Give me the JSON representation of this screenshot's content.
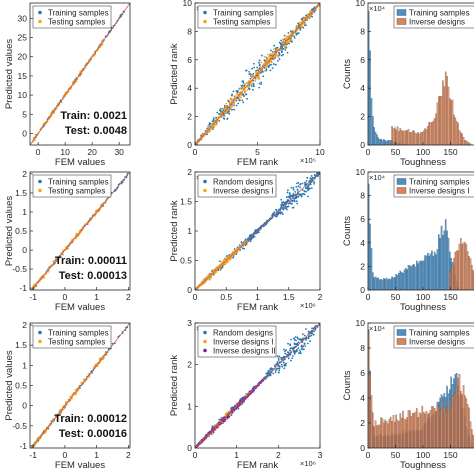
{
  "colors": {
    "training": "#1f77b4",
    "testing": "#f5a623",
    "inverse1": "#f5a623",
    "inverse2": "#7a1fa2",
    "diagonal": "#d9534f",
    "hist_blue": "#4a90c8",
    "hist_orange": "#d9845a"
  },
  "chart_data": [
    {
      "type": "scatter",
      "title": "",
      "xlabel": "FEM values",
      "ylabel": "Predicted values",
      "xlim": [
        -3,
        34
      ],
      "ylim": [
        -3,
        34
      ],
      "xticks": [
        "0",
        "10",
        "20",
        "30"
      ],
      "yticks": [
        "0",
        "5",
        "10",
        "15",
        "20",
        "25",
        "30"
      ],
      "legend": {
        "placement": "top-left",
        "entries": [
          "Training samples",
          "Testing samples"
        ]
      },
      "series": [
        {
          "name": "Training samples",
          "x": [
            0,
            5,
            10,
            15,
            20,
            25,
            30,
            32
          ],
          "y": [
            0,
            5,
            10,
            15,
            20,
            25,
            30,
            32
          ]
        },
        {
          "name": "Testing samples",
          "x": [
            0,
            5,
            10,
            15,
            20,
            25
          ],
          "y": [
            0,
            5,
            10,
            15,
            20,
            25
          ]
        }
      ],
      "annotations": [
        "Train: 0.0021",
        "Test: 0.0048"
      ]
    },
    {
      "type": "scatter",
      "title": "",
      "xlabel": "FEM rank",
      "ylabel": "Predicted rank",
      "xlim": [
        0,
        10
      ],
      "ylim": [
        0,
        10
      ],
      "exponent": "×10⁵",
      "xticks": [
        "0",
        "5",
        "10"
      ],
      "yticks": [
        "0",
        "2",
        "4",
        "6",
        "8",
        "10"
      ],
      "legend": {
        "placement": "top-left",
        "entries": [
          "Training samples",
          "Testing samples"
        ]
      },
      "series": [
        {
          "name": "Training samples",
          "x": [
            0,
            2,
            4,
            6,
            8,
            10
          ],
          "y": [
            0,
            2,
            4,
            6,
            8,
            10
          ]
        },
        {
          "name": "Testing samples",
          "x": [
            0,
            2,
            4,
            6,
            8,
            10
          ],
          "y": [
            0,
            2,
            4,
            6,
            8,
            10
          ]
        }
      ]
    },
    {
      "type": "bar",
      "title": "",
      "xlabel": "Toughness",
      "ylabel": "Counts",
      "xlim": [
        0,
        200
      ],
      "ylim": [
        0,
        10
      ],
      "exponent": "×10⁴",
      "xticks": [
        "0",
        "50",
        "100",
        "150"
      ],
      "yticks": [
        "0",
        "2",
        "4",
        "6",
        "8",
        "10"
      ],
      "legend": {
        "placement": "top-right",
        "entries": [
          "Training samples",
          "Inverse designs"
        ]
      },
      "series": [
        {
          "name": "Training samples",
          "x": [
            2,
            5,
            10,
            20,
            40,
            60
          ],
          "values": [
            9.8,
            3.5,
            1.2,
            0.4,
            0.3,
            0.1
          ]
        },
        {
          "name": "Inverse designs",
          "x": [
            45,
            100,
            120,
            130,
            140,
            150,
            160,
            175
          ],
          "values": [
            1.2,
            0.8,
            2.0,
            3.5,
            4.8,
            3.6,
            1.8,
            0.4
          ]
        }
      ]
    },
    {
      "type": "scatter",
      "title": "",
      "xlabel": "FEM values",
      "ylabel": "Predicted values",
      "xlim": [
        -1.1,
        2.05
      ],
      "ylim": [
        -1.05,
        2.05
      ],
      "xticks": [
        "-1",
        "0",
        "1",
        "2"
      ],
      "yticks": [
        "-1",
        "-0.5",
        "0",
        "0.5",
        "1",
        "1.5",
        "2"
      ],
      "legend": {
        "placement": "top-left",
        "entries": [
          "Training samples",
          "Testing samples"
        ]
      },
      "series": [
        {
          "name": "Training samples",
          "x": [
            -1,
            0,
            1,
            2
          ],
          "y": [
            -1,
            0,
            1,
            2
          ]
        },
        {
          "name": "Testing samples",
          "x": [
            -1,
            0,
            1,
            2
          ],
          "y": [
            -1,
            0,
            1,
            2
          ]
        }
      ],
      "annotations": [
        "Train: 0.00011",
        "Test: 0.00013"
      ]
    },
    {
      "type": "scatter",
      "title": "",
      "xlabel": "FEM rank",
      "ylabel": "Predicted rank",
      "xlim": [
        0,
        2
      ],
      "ylim": [
        0,
        2
      ],
      "exponent": "×10⁶",
      "xticks": [
        "0",
        "0.5",
        "1",
        "1.5",
        "2"
      ],
      "yticks": [
        "0",
        "0.5",
        "1",
        "1.5",
        "2"
      ],
      "legend": {
        "placement": "top-left",
        "entries": [
          "Random designs",
          "Inverse designs I"
        ]
      },
      "series": [
        {
          "name": "Random designs",
          "x": [
            0,
            0.5,
            1,
            1.5,
            2
          ],
          "y": [
            0,
            0.5,
            1,
            1.5,
            2
          ]
        },
        {
          "name": "Inverse designs I",
          "x": [
            0,
            0.4,
            0.8
          ],
          "y": [
            0,
            0.4,
            0.8
          ]
        }
      ]
    },
    {
      "type": "bar",
      "title": "",
      "xlabel": "Toughness",
      "ylabel": "Counts",
      "xlim": [
        0,
        200
      ],
      "ylim": [
        0,
        10
      ],
      "exponent": "×10⁴",
      "xticks": [
        "0",
        "50",
        "100",
        "150"
      ],
      "yticks": [
        "0",
        "2",
        "4",
        "6",
        "8",
        "10"
      ],
      "legend": {
        "placement": "top-right",
        "entries": [
          "Training samples",
          "Inverse designs I"
        ]
      },
      "series": [
        {
          "name": "Training samples",
          "x": [
            2,
            5,
            10,
            40,
            120,
            140,
            150
          ],
          "values": [
            9.5,
            3.8,
            1.0,
            1.0,
            3.0,
            5.5,
            3.2
          ]
        },
        {
          "name": "Inverse designs I",
          "x": [
            150,
            160,
            170,
            180,
            190
          ],
          "values": [
            1.5,
            3.0,
            4.5,
            3.5,
            2.0
          ]
        }
      ]
    },
    {
      "type": "scatter",
      "title": "",
      "xlabel": "FEM values",
      "ylabel": "Predicted values",
      "xlim": [
        -1.1,
        2.05
      ],
      "ylim": [
        -1.05,
        2.05
      ],
      "xticks": [
        "-1",
        "0",
        "1",
        "2"
      ],
      "yticks": [
        "-1",
        "-0.5",
        "0",
        "0.5",
        "1",
        "1.5",
        "2"
      ],
      "legend": {
        "placement": "top-left",
        "entries": [
          "Training samples",
          "Testing samples"
        ]
      },
      "series": [
        {
          "name": "Training samples",
          "x": [
            -1,
            0,
            1,
            2
          ],
          "y": [
            -1,
            0,
            1,
            2
          ]
        },
        {
          "name": "Testing samples",
          "x": [
            -1,
            0,
            1,
            2
          ],
          "y": [
            -1,
            0,
            1,
            2
          ]
        }
      ],
      "annotations": [
        "Train: 0.00012",
        "Test: 0.00016"
      ]
    },
    {
      "type": "scatter",
      "title": "",
      "xlabel": "FEM rank",
      "ylabel": "Predicted rank",
      "xlim": [
        0,
        3
      ],
      "ylim": [
        0,
        3
      ],
      "exponent": "×10⁶",
      "xticks": [
        "0",
        "1",
        "2",
        "3"
      ],
      "yticks": [
        "0",
        "1",
        "2",
        "3"
      ],
      "legend": {
        "placement": "top-left",
        "entries": [
          "Random designs",
          "Inverse designs I",
          "Inverse designs II"
        ]
      },
      "series": [
        {
          "name": "Random designs",
          "x": [
            0,
            1,
            2,
            3
          ],
          "y": [
            0,
            1,
            2,
            3
          ]
        },
        {
          "name": "Inverse designs I",
          "x": [
            0,
            0.5,
            1
          ],
          "y": [
            0,
            0.5,
            1
          ]
        },
        {
          "name": "Inverse designs II",
          "x": [
            0,
            0.8,
            1.6
          ],
          "y": [
            0,
            0.8,
            1.6
          ]
        }
      ]
    },
    {
      "type": "bar",
      "title": "",
      "xlabel": "Toughness",
      "ylabel": "Counts",
      "xlim": [
        0,
        200
      ],
      "ylim": [
        0,
        10
      ],
      "exponent": "×10⁴",
      "xticks": [
        "0",
        "50",
        "100",
        "150"
      ],
      "yticks": [
        "0",
        "2",
        "4",
        "6",
        "8",
        "10"
      ],
      "legend": {
        "placement": "top-right",
        "entries": [
          "Training samples",
          "Inverse designs"
        ]
      },
      "series": [
        {
          "name": "Training samples",
          "x": [
            2,
            5,
            10,
            40,
            100,
            140,
            160,
            175
          ],
          "values": [
            9.5,
            3.2,
            1.0,
            1.0,
            1.5,
            4.2,
            6.0,
            2.5
          ]
        },
        {
          "name": "Inverse designs",
          "x": [
            2,
            5,
            10,
            150,
            165,
            180
          ],
          "values": [
            8.0,
            5.0,
            2.0,
            3.5,
            5.5,
            4.0
          ]
        }
      ]
    }
  ]
}
